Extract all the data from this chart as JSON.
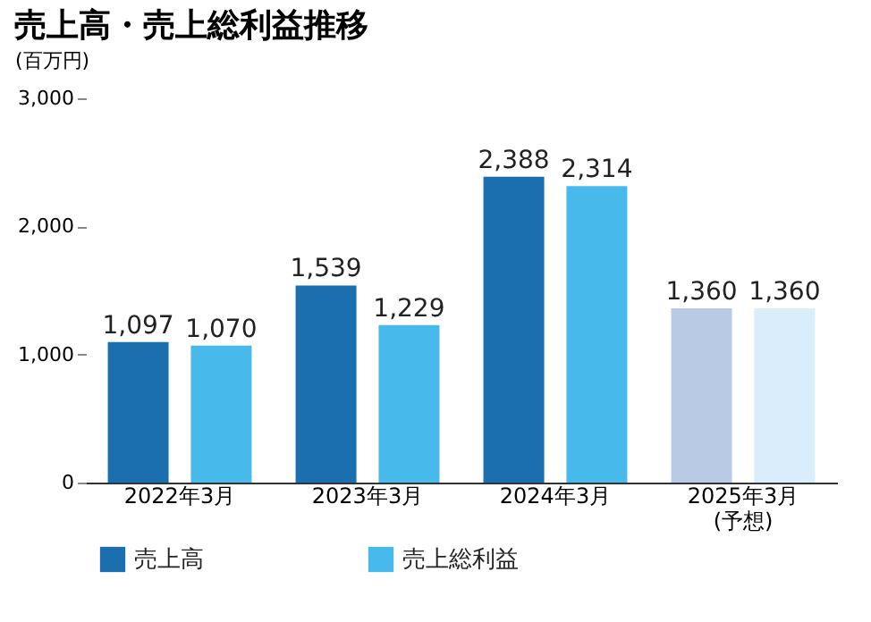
{
  "chart_data": {
    "type": "bar",
    "title": "売上高・売上総利益推移",
    "ylabel": "(百万円)",
    "categories": [
      "2022年3月",
      "2023年3月",
      "2024年3月",
      "2025年3月\n(予想)"
    ],
    "series": [
      {
        "name": "売上高",
        "color": "#1b6fae",
        "colors": [
          "#1b6fae",
          "#1b6fae",
          "#1b6fae",
          "#b8cae4"
        ],
        "values": [
          1097,
          1539,
          2388,
          1360
        ],
        "value_labels": [
          "1,097",
          "1,539",
          "2,388",
          "1,360"
        ]
      },
      {
        "name": "売上総利益",
        "color": "#47b9ea",
        "colors": [
          "#47b9ea",
          "#47b9ea",
          "#47b9ea",
          "#d9eefa"
        ],
        "values": [
          1070,
          1229,
          2314,
          1360
        ],
        "value_labels": [
          "1,070",
          "1,229",
          "2,314",
          "1,360"
        ]
      }
    ],
    "ylim": [
      0,
      3000
    ],
    "yticks": [
      0,
      {
        "value": 1000,
        "label": "1,000"
      },
      {
        "value": 2000,
        "label": "2,000"
      },
      {
        "value": 3000,
        "label": "3,000"
      }
    ],
    "legend": "bottom",
    "grid": false
  }
}
